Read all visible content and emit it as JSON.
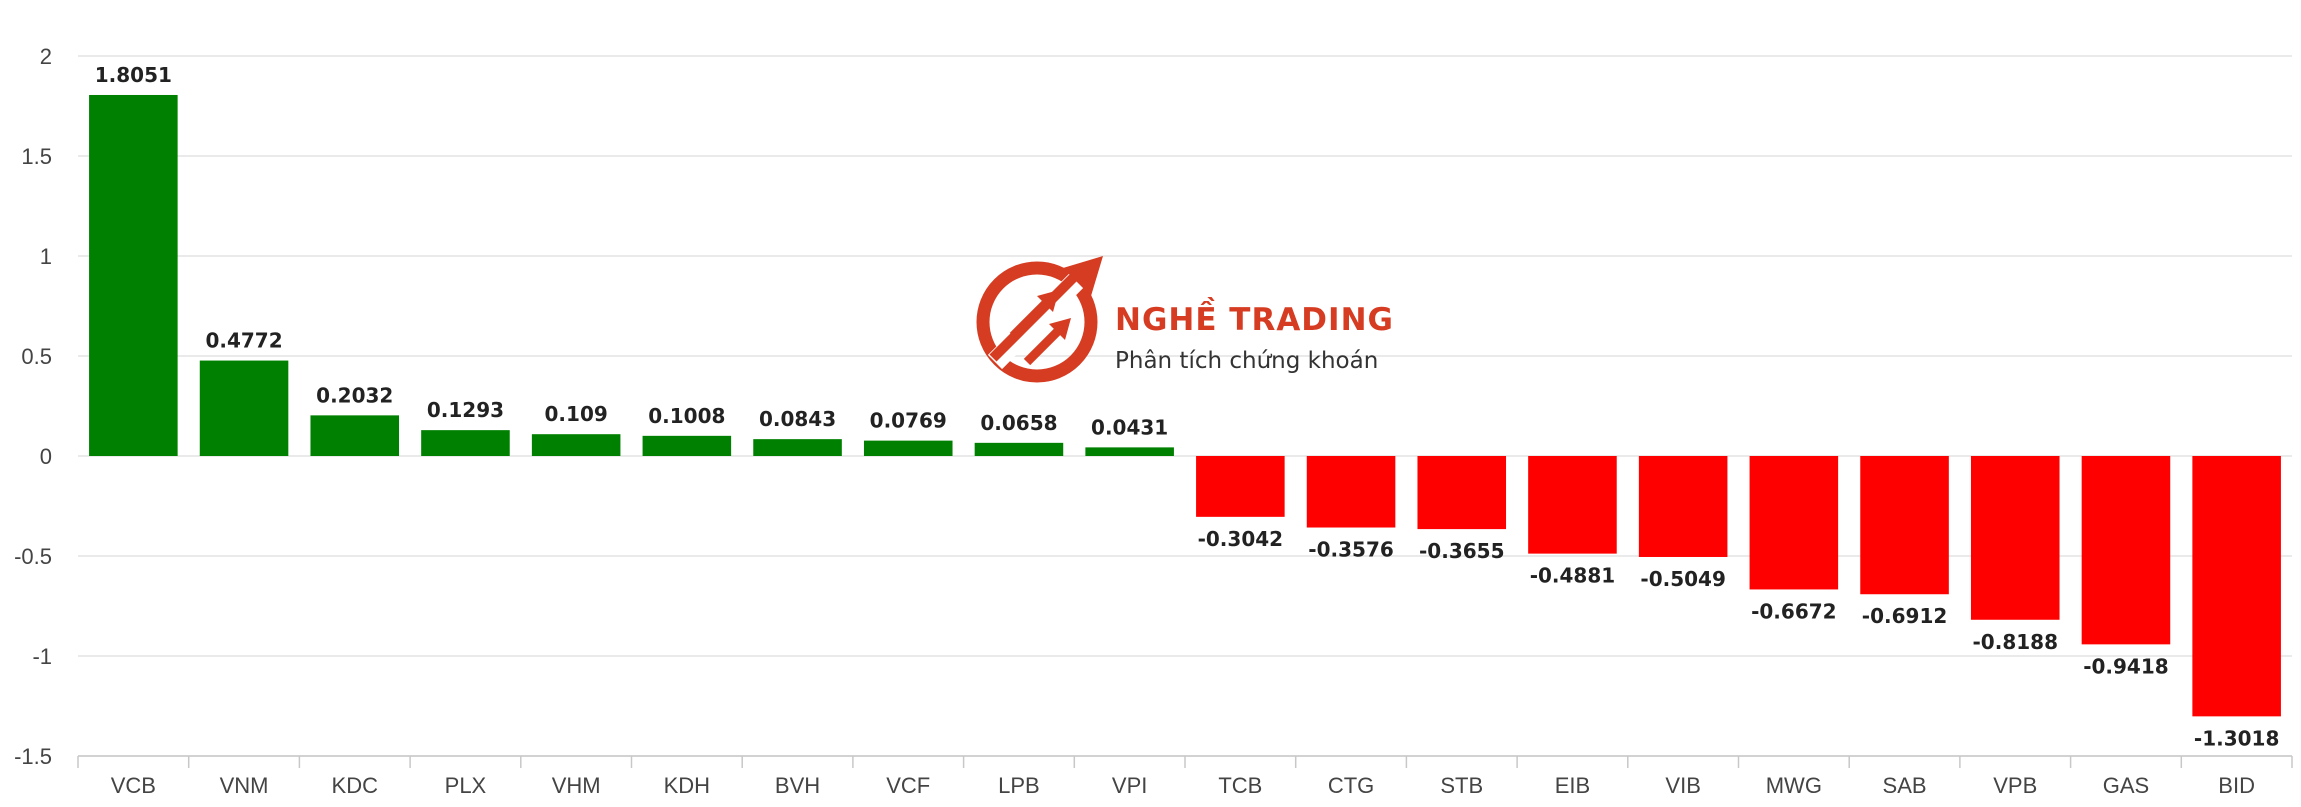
{
  "chart_data": {
    "type": "bar",
    "categories": [
      "VCB",
      "VNM",
      "KDC",
      "PLX",
      "VHM",
      "KDH",
      "BVH",
      "VCF",
      "LPB",
      "VPI",
      "TCB",
      "CTG",
      "STB",
      "EIB",
      "VIB",
      "MWG",
      "SAB",
      "VPB",
      "GAS",
      "BID"
    ],
    "values": [
      1.8051,
      0.4772,
      0.2032,
      0.1293,
      0.109,
      0.1008,
      0.0843,
      0.0769,
      0.0658,
      0.0431,
      -0.3042,
      -0.3576,
      -0.3655,
      -0.4881,
      -0.5049,
      -0.6672,
      -0.6912,
      -0.8188,
      -0.9418,
      -1.3018
    ],
    "value_labels": [
      "1.8051",
      "0.4772",
      "0.2032",
      "0.1293",
      "0.109",
      "0.1008",
      "0.0843",
      "0.0769",
      "0.0658",
      "0.0431",
      "-0.3042",
      "-0.3576",
      "-0.3655",
      "-0.4881",
      "-0.5049",
      "-0.6672",
      "-0.6912",
      "-0.8188",
      "-0.9418",
      "-1.3018"
    ],
    "ylim": [
      -1.5,
      2
    ],
    "yticks": [
      2,
      1.5,
      1,
      0.5,
      0,
      -0.5,
      -1,
      -1.5
    ],
    "ytick_labels": [
      "2",
      "1.5",
      "1",
      "0.5",
      "0",
      "-0.5",
      "-1",
      "-1.5"
    ],
    "grid": true,
    "colors": {
      "positive": "#008000",
      "negative": "#ff0000"
    }
  },
  "watermark": {
    "title": "NGHỀ TRADING",
    "subtitle": "Phân tích chứng khoán",
    "color": "#d63c21",
    "icon": "trading-arrow-logo-icon"
  }
}
